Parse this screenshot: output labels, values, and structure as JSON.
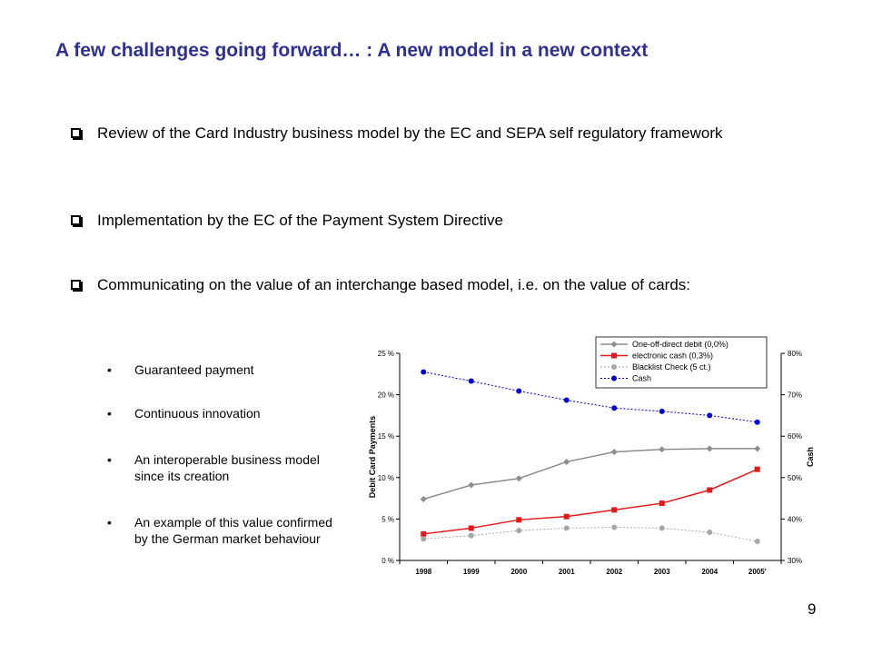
{
  "slide": {
    "title": "A few challenges going forward… : A new model in a new context",
    "page_number": "9"
  },
  "bullets": [
    "Review of the Card Industry business model by the EC and SEPA self regulatory framework",
    "Implementation by the EC of the Payment System Directive",
    "Communicating on the value of an interchange based model, i.e. on the value of cards:"
  ],
  "sub_bullets": [
    "Guaranteed payment",
    "Continuous innovation",
    "An interoperable business model since its creation",
    "An example of this value confirmed by the German market behaviour"
  ],
  "chart_data": {
    "type": "line",
    "categories": [
      "1998",
      "1999",
      "2000",
      "2001",
      "2002",
      "2003",
      "2004",
      "2005'"
    ],
    "ylabel": "Debit Card Payments",
    "y2label": "Cash",
    "ylim": [
      0,
      25
    ],
    "y2lim": [
      30,
      80
    ],
    "y_ticks": [
      "0 %",
      "5 %",
      "10 %",
      "15 %",
      "20 %",
      "25 %"
    ],
    "y2_ticks": [
      "30%",
      "40%",
      "50%",
      "60%",
      "70%",
      "80%"
    ],
    "legend_position": "top-right",
    "series": [
      {
        "name": "One-off-direct debit (0,0%)",
        "axis": "left",
        "color": "#8c8c8c",
        "marker": "diamond",
        "dash": "",
        "values": [
          7.4,
          9.1,
          9.9,
          11.9,
          13.1,
          13.4,
          13.5,
          13.5
        ]
      },
      {
        "name": "electronic cash (0,3%)",
        "axis": "left",
        "color": "#e31a1c",
        "marker": "square",
        "dash": "",
        "values": [
          3.2,
          3.9,
          4.9,
          5.3,
          6.1,
          6.9,
          8.5,
          11.0
        ]
      },
      {
        "name": "Blacklist Check (5 ct.)",
        "axis": "left",
        "color": "#a6a6a6",
        "marker": "circle",
        "dash": "2,2",
        "values": [
          2.6,
          3.0,
          3.6,
          3.9,
          4.0,
          3.9,
          3.4,
          2.3
        ]
      },
      {
        "name": "Cash",
        "axis": "right",
        "color": "#0000cc",
        "marker": "circle",
        "dash": "2,2",
        "values": [
          75.5,
          73.3,
          70.9,
          68.7,
          66.8,
          66.0,
          65.0,
          63.4
        ]
      }
    ]
  }
}
